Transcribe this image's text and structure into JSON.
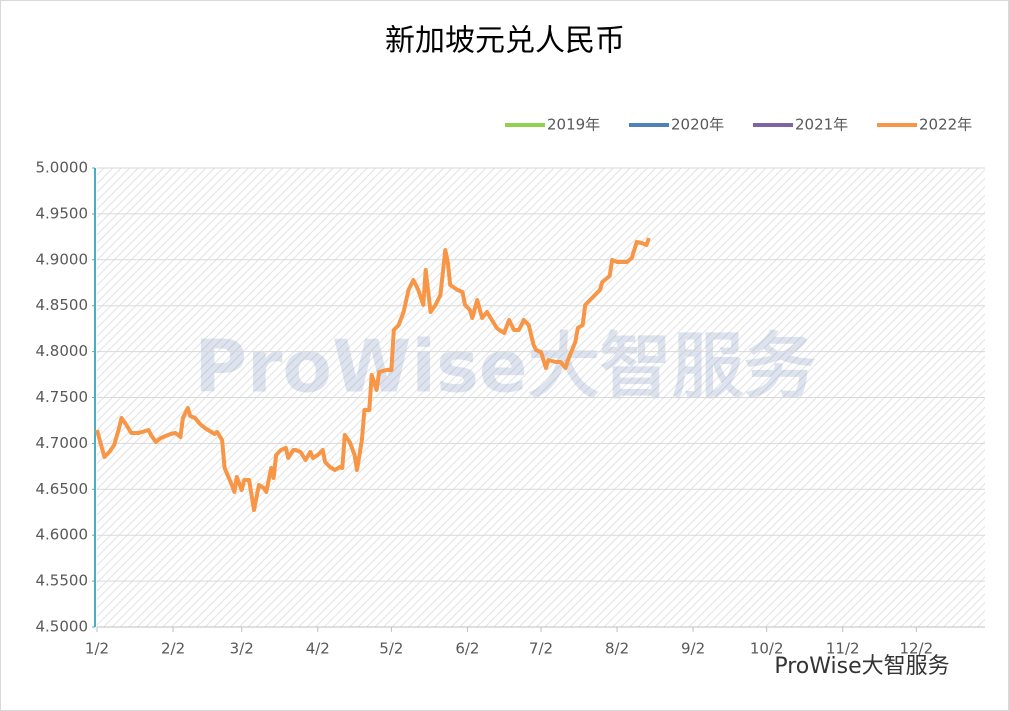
{
  "chart_data": {
    "type": "line",
    "title": "新加坡元兑人民币",
    "watermark": "ProWise大智服务",
    "footer_watermark": "ProWise大智服务",
    "xlim": [
      0,
      362
    ],
    "xticks": [
      {
        "value": 0,
        "label": "1/2"
      },
      {
        "value": 31,
        "label": "2/2"
      },
      {
        "value": 59,
        "label": "3/2"
      },
      {
        "value": 90,
        "label": "4/2"
      },
      {
        "value": 120,
        "label": "5/2"
      },
      {
        "value": 151,
        "label": "6/2"
      },
      {
        "value": 181,
        "label": "7/2"
      },
      {
        "value": 212,
        "label": "8/2"
      },
      {
        "value": 243,
        "label": "9/2"
      },
      {
        "value": 273,
        "label": "10/2"
      },
      {
        "value": 304,
        "label": "11/2"
      },
      {
        "value": 334,
        "label": "12/2"
      }
    ],
    "ylim": [
      4.5,
      5.0
    ],
    "yticks": [
      {
        "value": 4.5,
        "label": "4.5000"
      },
      {
        "value": 4.55,
        "label": "4.5500"
      },
      {
        "value": 4.6,
        "label": "4.6000"
      },
      {
        "value": 4.65,
        "label": "4.6500"
      },
      {
        "value": 4.7,
        "label": "4.7000"
      },
      {
        "value": 4.75,
        "label": "4.7500"
      },
      {
        "value": 4.8,
        "label": "4.8000"
      },
      {
        "value": 4.85,
        "label": "4.8500"
      },
      {
        "value": 4.9,
        "label": "4.9000"
      },
      {
        "value": 4.95,
        "label": "4.9500"
      },
      {
        "value": 5.0,
        "label": "5.0000"
      }
    ],
    "grid": true,
    "legend": "top-right",
    "series": [
      {
        "name": "2019年",
        "color": "#92d050",
        "x": [],
        "values": []
      },
      {
        "name": "2020年",
        "color": "#4f81bd",
        "x": [],
        "values": []
      },
      {
        "name": "2021年",
        "color": "#8064a2",
        "x": [],
        "values": []
      },
      {
        "name": "2022年",
        "color": "#f79646",
        "x": [
          0,
          3,
          5,
          7,
          9,
          10,
          12,
          14,
          17,
          21,
          22,
          24,
          26,
          30,
          32,
          34,
          35,
          37,
          38,
          40,
          42,
          44,
          46,
          48,
          49,
          51,
          52,
          55,
          56,
          57,
          59,
          60,
          62,
          64,
          66,
          68,
          69,
          71,
          72,
          73,
          75,
          77,
          78,
          80,
          81,
          83,
          85,
          87,
          88,
          90,
          92,
          93,
          95,
          97,
          99,
          100,
          101,
          103,
          105,
          106,
          108,
          109,
          111,
          112,
          114,
          115,
          118,
          120,
          121,
          123,
          125,
          127,
          129,
          130,
          131,
          133,
          134,
          136,
          138,
          140,
          142,
          143,
          144,
          147,
          149,
          150,
          152,
          153,
          155,
          157,
          159,
          161,
          163,
          164,
          166,
          168,
          170,
          172,
          174,
          176,
          178,
          179,
          181,
          183,
          184,
          187,
          189,
          191,
          192,
          195,
          196,
          198,
          199,
          201,
          203,
          205,
          206,
          209,
          210,
          212,
          214,
          216,
          218,
          220,
          222,
          224,
          225
        ],
        "values": [
          4.7146,
          4.6852,
          4.6906,
          4.6983,
          4.7168,
          4.7277,
          4.72,
          4.7113,
          4.7113,
          4.7146,
          4.7092,
          4.7015,
          4.7059,
          4.7102,
          4.7113,
          4.707,
          4.7277,
          4.7386,
          4.7298,
          4.7277,
          4.7211,
          4.7168,
          4.7135,
          4.7102,
          4.7124,
          4.7037,
          4.6732,
          4.6547,
          4.6471,
          4.6634,
          4.6492,
          4.6601,
          4.6601,
          4.6275,
          4.6547,
          4.6514,
          4.6471,
          4.6732,
          4.6623,
          4.6874,
          4.6928,
          4.695,
          4.6841,
          4.6928,
          4.6928,
          4.6906,
          4.6819,
          4.6906,
          4.6841,
          4.6874,
          4.6928,
          4.6797,
          4.6743,
          4.671,
          4.6743,
          4.6732,
          4.7092,
          4.7015,
          4.6874,
          4.671,
          4.7037,
          4.7364,
          4.7364,
          4.7745,
          4.7582,
          4.7778,
          4.78,
          4.78,
          4.8235,
          4.829,
          4.8431,
          4.8671,
          4.878,
          4.8725,
          4.8671,
          4.8508,
          4.8889,
          4.8431,
          4.8508,
          4.8617,
          4.9107,
          4.8976,
          4.8725,
          4.8671,
          4.8649,
          4.8508,
          4.8453,
          4.8366,
          4.8562,
          4.8366,
          4.8431,
          4.8344,
          4.8257,
          4.8235,
          4.8203,
          4.8344,
          4.8235,
          4.8235,
          4.8344,
          4.829,
          4.8072,
          4.8017,
          4.7996,
          4.7821,
          4.7908,
          4.7887,
          4.7887,
          4.7821,
          4.7908,
          4.8105,
          4.8257,
          4.829,
          4.8508,
          4.8562,
          4.8617,
          4.8671,
          4.8758,
          4.8824,
          4.8998,
          4.8976,
          4.8976,
          4.8976,
          4.902,
          4.9194,
          4.9183,
          4.9161,
          4.9237
        ]
      }
    ]
  }
}
